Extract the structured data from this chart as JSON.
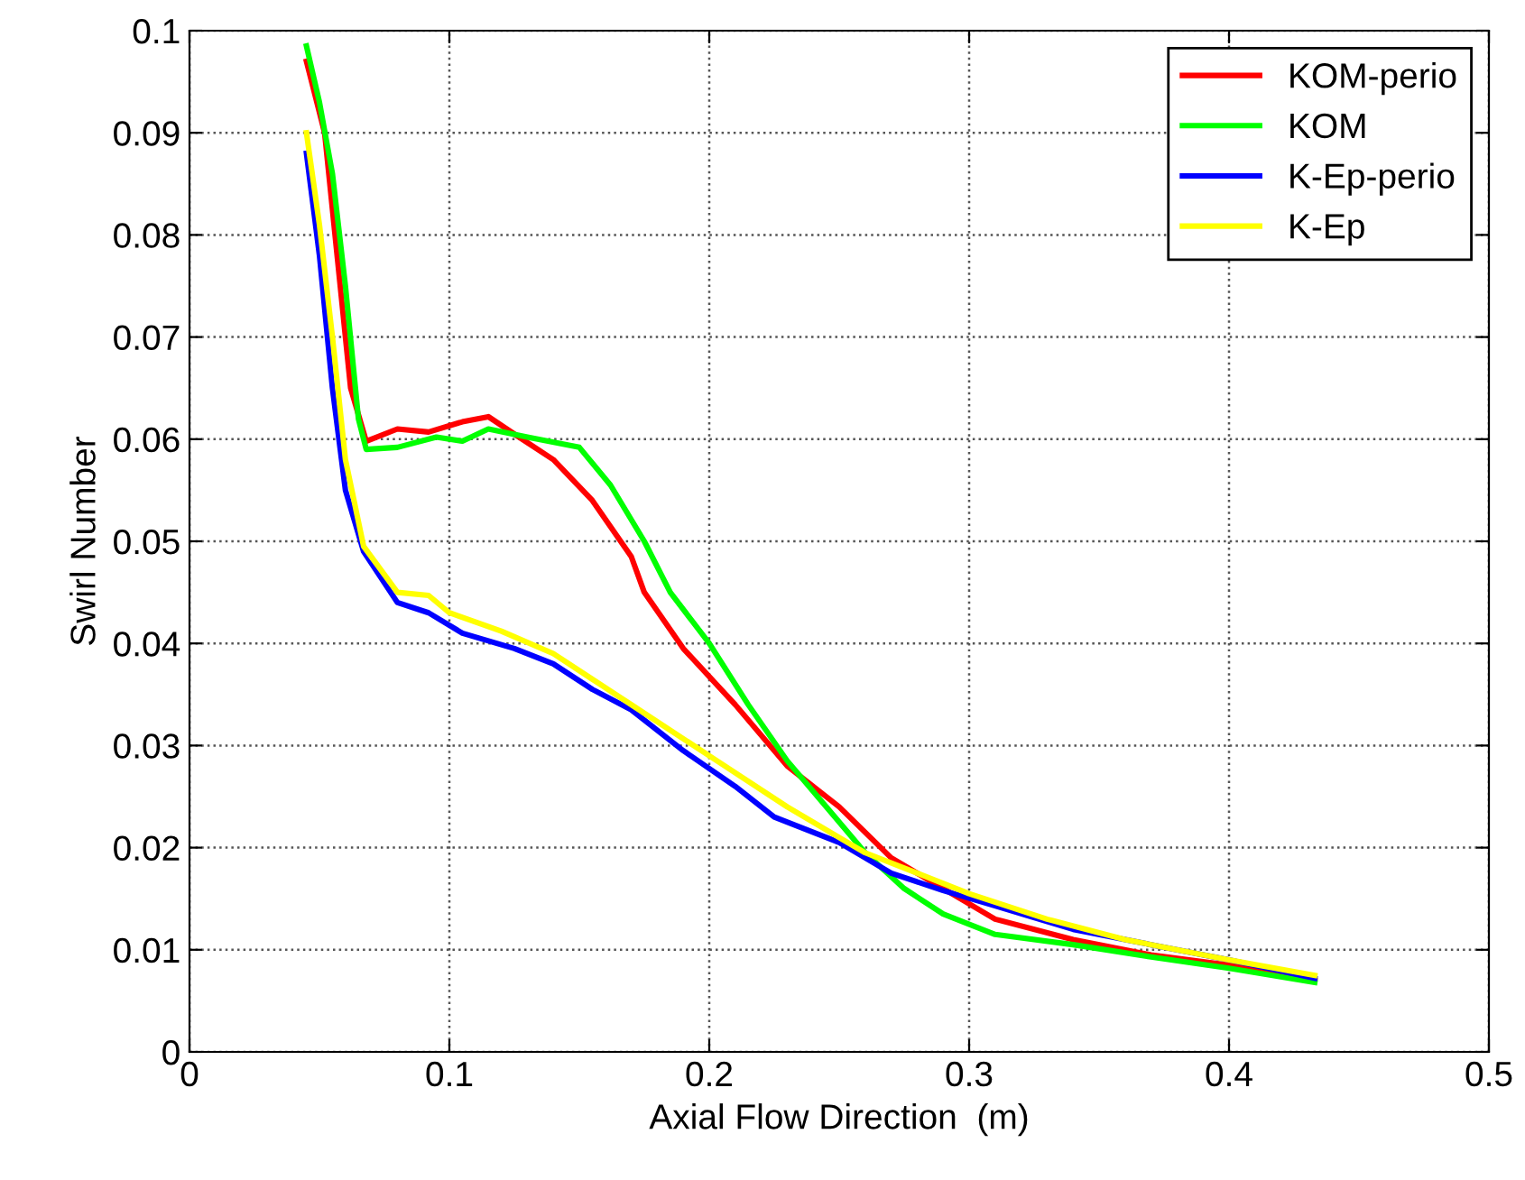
{
  "chart_data": {
    "type": "line",
    "xlabel": "Axial Flow Direction  (m)",
    "ylabel": "Swirl Number",
    "xlim": [
      0,
      0.5
    ],
    "xticks": [
      0,
      0.1,
      0.2,
      0.3,
      0.4,
      0.5
    ],
    "ylim": [
      0,
      0.1
    ],
    "yticks": [
      0,
      0.01,
      0.02,
      0.03,
      0.04,
      0.05,
      0.06,
      0.07,
      0.08,
      0.09,
      0.1
    ],
    "grid": true,
    "legend": "top right",
    "line_style": "solid",
    "marker": "none",
    "series": [
      {
        "name": "KOM-perio",
        "color": "#ff0000",
        "x": [
          0.045,
          0.052,
          0.058,
          0.062,
          0.068,
          0.08,
          0.092,
          0.105,
          0.115,
          0.125,
          0.14,
          0.155,
          0.17,
          0.175,
          0.19,
          0.21,
          0.23,
          0.25,
          0.27,
          0.29,
          0.31,
          0.34,
          0.37,
          0.4,
          0.433
        ],
        "values": [
          0.097,
          0.09,
          0.075,
          0.065,
          0.0598,
          0.061,
          0.0607,
          0.0617,
          0.0622,
          0.0605,
          0.058,
          0.054,
          0.0485,
          0.045,
          0.0395,
          0.034,
          0.028,
          0.024,
          0.019,
          0.016,
          0.013,
          0.011,
          0.0095,
          0.0085,
          0.007
        ]
      },
      {
        "name": "KOM",
        "color": "#00ff00",
        "x": [
          0.045,
          0.05,
          0.055,
          0.06,
          0.065,
          0.068,
          0.08,
          0.095,
          0.105,
          0.115,
          0.13,
          0.15,
          0.162,
          0.175,
          0.185,
          0.2,
          0.215,
          0.23,
          0.245,
          0.26,
          0.275,
          0.29,
          0.31,
          0.34,
          0.37,
          0.4,
          0.433
        ],
        "values": [
          0.0985,
          0.093,
          0.086,
          0.075,
          0.062,
          0.059,
          0.0592,
          0.0602,
          0.0598,
          0.061,
          0.0602,
          0.0592,
          0.0555,
          0.05,
          0.045,
          0.04,
          0.034,
          0.0285,
          0.024,
          0.0195,
          0.016,
          0.0135,
          0.0115,
          0.0105,
          0.0093,
          0.0082,
          0.0068
        ]
      },
      {
        "name": "K-Ep-perio",
        "color": "#0000ff",
        "x": [
          0.045,
          0.05,
          0.055,
          0.06,
          0.067,
          0.08,
          0.092,
          0.105,
          0.125,
          0.14,
          0.155,
          0.17,
          0.19,
          0.21,
          0.225,
          0.25,
          0.27,
          0.29,
          0.31,
          0.34,
          0.37,
          0.4,
          0.433
        ],
        "values": [
          0.088,
          0.078,
          0.065,
          0.055,
          0.049,
          0.044,
          0.043,
          0.041,
          0.0395,
          0.038,
          0.0355,
          0.0335,
          0.0295,
          0.026,
          0.023,
          0.0205,
          0.0175,
          0.0158,
          0.0143,
          0.012,
          0.0105,
          0.009,
          0.0072
        ]
      },
      {
        "name": "K-Ep",
        "color": "#ffff00",
        "x": [
          0.045,
          0.05,
          0.055,
          0.06,
          0.067,
          0.08,
          0.092,
          0.1,
          0.12,
          0.14,
          0.155,
          0.17,
          0.2,
          0.23,
          0.26,
          0.28,
          0.3,
          0.33,
          0.36,
          0.4,
          0.433
        ],
        "values": [
          0.09,
          0.081,
          0.07,
          0.058,
          0.0495,
          0.045,
          0.0447,
          0.043,
          0.0412,
          0.039,
          0.0365,
          0.034,
          0.029,
          0.024,
          0.0195,
          0.0175,
          0.0155,
          0.013,
          0.011,
          0.009,
          0.0075
        ]
      }
    ]
  }
}
